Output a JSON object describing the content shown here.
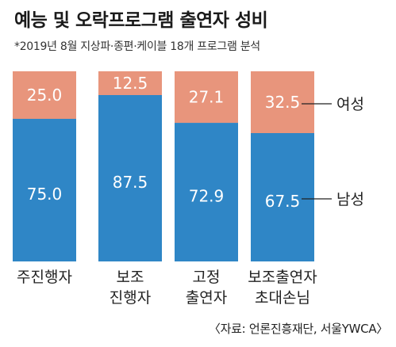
{
  "title": "예능 및 오락프로그램 출연자 성비",
  "subtitle": "*2019년 8월 지상파·종편·케이블 18개 프로그램 분석",
  "source": "〈자료: 언론진흥재단, 서울YWCA〉",
  "chart_data": {
    "type": "bar",
    "stacked": true,
    "normalized": true,
    "categories": [
      "주진행자",
      "보조 진행자",
      "고정 출연자",
      "보조출연자 초대손님"
    ],
    "category_lines": [
      [
        "주진행자"
      ],
      [
        "보조",
        "진행자"
      ],
      [
        "고정",
        "출연자"
      ],
      [
        "보조출연자",
        "초대손님"
      ]
    ],
    "series": [
      {
        "name": "남성",
        "values": [
          75.0,
          87.5,
          72.9,
          67.5
        ],
        "color": "#2f86c6"
      },
      {
        "name": "여성",
        "values": [
          25.0,
          12.5,
          27.1,
          32.5
        ],
        "color": "#e8957c"
      }
    ],
    "value_labels": {
      "남성": [
        "75.0",
        "87.5",
        "72.9",
        "67.5"
      ],
      "여성": [
        "25.0",
        "12.5",
        "27.1",
        "32.5"
      ]
    },
    "ylim": [
      0,
      100
    ],
    "grid": false,
    "legend": "right"
  }
}
